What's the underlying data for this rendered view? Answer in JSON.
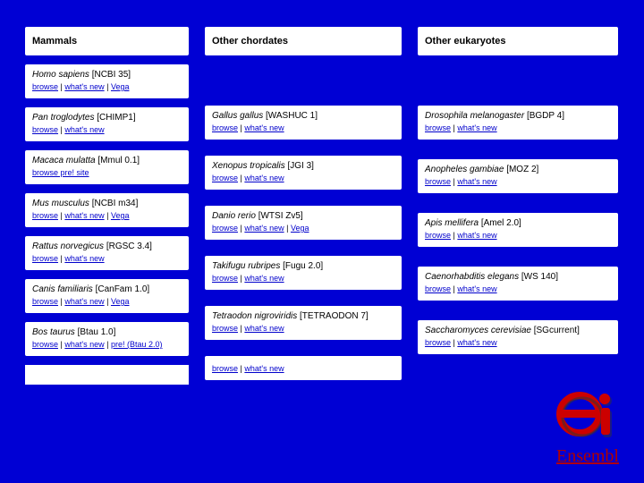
{
  "headers": {
    "mammals": "Mammals",
    "chordates": "Other chordates",
    "eukaryotes": "Other eukaryotes"
  },
  "col1": [
    {
      "name": "Homo sapiens",
      "asm": "[NCBI 35]",
      "links": [
        "browse",
        "what's new",
        "Vega"
      ]
    },
    {
      "name": "Pan troglodytes",
      "asm": "[CHIMP1]",
      "links": [
        "browse",
        "what's new"
      ]
    },
    {
      "name": "Macaca mulatta",
      "asm": "[Mmul 0.1]",
      "links": [
        "browse pre! site"
      ]
    },
    {
      "name": "Mus musculus",
      "asm": "[NCBI m34]",
      "links": [
        "browse",
        "what's new",
        "Vega"
      ]
    },
    {
      "name": "Rattus norvegicus",
      "asm": "[RGSC 3.4]",
      "links": [
        "browse",
        "what's new"
      ]
    },
    {
      "name": "Canis familiaris",
      "asm": "[CanFam 1.0]",
      "links": [
        "browse",
        "what's new",
        "Vega"
      ]
    },
    {
      "name": "Bos taurus",
      "asm": "[Btau 1.0]",
      "links": [
        "browse",
        "what's new",
        "pre! (Btau 2.0)"
      ]
    }
  ],
  "col2": [
    {
      "name": "Gallus gallus",
      "asm": "[WASHUC 1]",
      "links": [
        "browse",
        "what's new"
      ]
    },
    {
      "name": "Xenopus tropicalis",
      "asm": "[JGI 3]",
      "links": [
        "browse",
        "what's new"
      ]
    },
    {
      "name": "Danio rerio",
      "asm": "[WTSI Zv5]",
      "links": [
        "browse",
        "what's new",
        "Vega"
      ]
    },
    {
      "name": "Takifugu rubripes",
      "asm": "[Fugu 2.0]",
      "links": [
        "browse",
        "what's new"
      ]
    },
    {
      "name": "Tetraodon nigroviridis",
      "asm": "[TETRAODON 7]",
      "links": [
        "browse",
        "what's new"
      ]
    },
    {
      "name": "",
      "asm": "",
      "links": [
        "browse",
        "what's new"
      ]
    }
  ],
  "col3": [
    {
      "name": "Drosophila melanogaster",
      "asm": "[BGDP 4]",
      "links": [
        "browse",
        "what's new"
      ]
    },
    {
      "name": "Anopheles gambiae",
      "asm": "[MOZ 2]",
      "links": [
        "browse",
        "what's new"
      ]
    },
    {
      "name": "Apis mellifera",
      "asm": "[Amel 2.0]",
      "links": [
        "browse",
        "what's new"
      ]
    },
    {
      "name": "Caenorhabditis elegans",
      "asm": "[WS 140]",
      "links": [
        "browse",
        "what's new"
      ]
    },
    {
      "name": "Saccharomyces cerevisiae",
      "asm": "[SGcurrent]",
      "links": [
        "browse",
        "what's new"
      ]
    }
  ],
  "brand": "Ensembl",
  "logo_colors": {
    "body": "#cc0000",
    "shadow": "#333333"
  }
}
